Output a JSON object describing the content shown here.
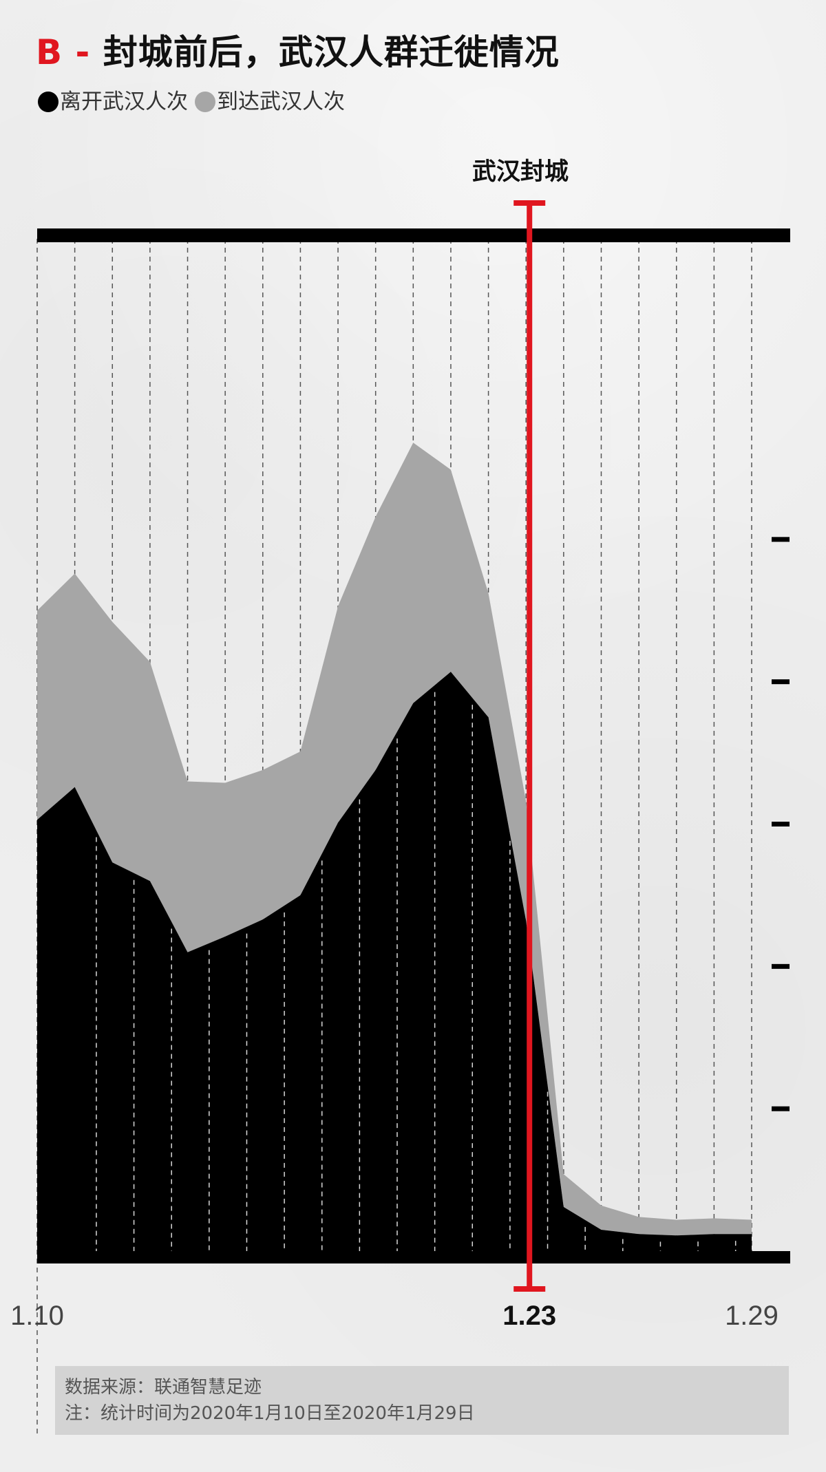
{
  "title": {
    "prefix": "B -",
    "text": " 封城前后，武汉人群迁徙情况"
  },
  "legend": [
    {
      "label": "离开武汉人次",
      "color": "#000000"
    },
    {
      "label": "到达武汉人次",
      "color": "#a6a6a6"
    }
  ],
  "lockdown_label": "武汉封城",
  "colors": {
    "leave": "#000000",
    "arrive": "#a6a6a6",
    "lockdown": "#e0161f"
  },
  "chart_data": {
    "type": "area",
    "stacked": true,
    "x": [
      "1.10",
      "1.11",
      "1.12",
      "1.13",
      "1.14",
      "1.15",
      "1.16",
      "1.17",
      "1.18",
      "1.19",
      "1.20",
      "1.21",
      "1.22",
      "1.23",
      "1.24",
      "1.25",
      "1.26",
      "1.27",
      "1.28",
      "1.29"
    ],
    "x_tick_labels": [
      "1.10",
      "1.23",
      "1.29"
    ],
    "series": [
      {
        "name": "离开武汉人次",
        "values": [
          3.03,
          3.26,
          2.73,
          2.6,
          2.1,
          2.21,
          2.33,
          2.5,
          3.01,
          3.38,
          3.85,
          4.07,
          3.75,
          2.32,
          0.31,
          0.15,
          0.12,
          0.11,
          0.12,
          0.12
        ]
      },
      {
        "name": "到达武汉人次",
        "values": [
          1.47,
          1.5,
          1.69,
          1.54,
          1.2,
          1.08,
          1.05,
          1.01,
          1.52,
          1.78,
          1.83,
          1.42,
          0.87,
          0.84,
          0.23,
          0.17,
          0.12,
          0.11,
          0.11,
          0.1
        ]
      }
    ],
    "ylim": [
      0,
      6
    ],
    "y_ticks": [
      1,
      2,
      3,
      4,
      5
    ],
    "y_tick_labels_visible": false,
    "grid": "vertical dashed",
    "annotation": {
      "x": "1.23",
      "label": "武汉封城"
    }
  },
  "footnote": {
    "source": "数据来源：联通智慧足迹",
    "note": "注：统计时间为2020年1月10日至2020年1月29日"
  }
}
